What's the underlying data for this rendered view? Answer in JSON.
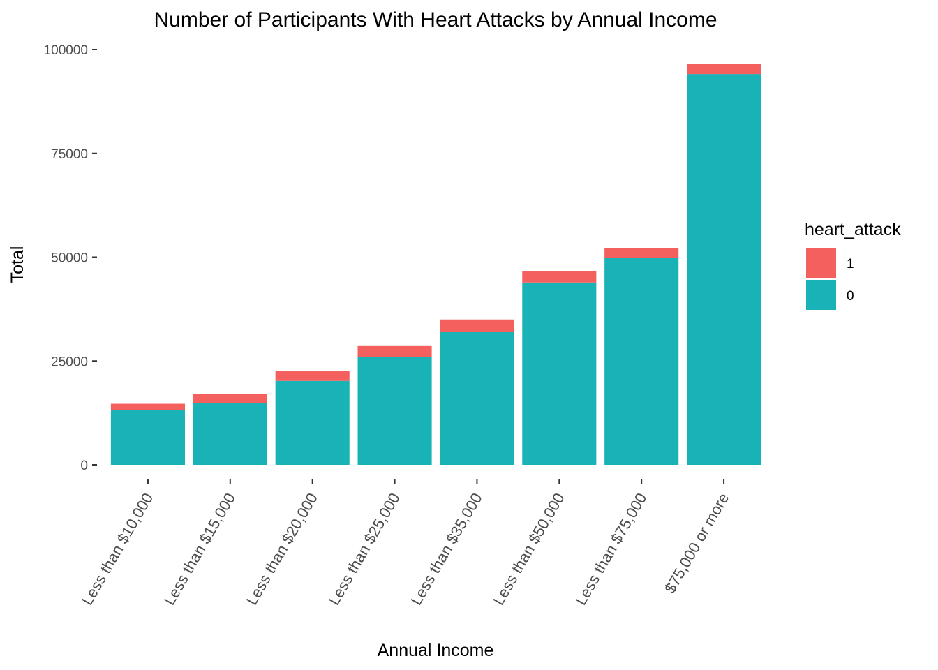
{
  "chart_data": {
    "type": "bar",
    "stacked": true,
    "title": "Number of Participants With Heart Attacks by Annual Income",
    "xlabel": "Annual Income",
    "ylabel": "Total",
    "ylim": [
      0,
      100000
    ],
    "yticks": [
      "0",
      "25000",
      "50000",
      "75000",
      "100000"
    ],
    "categories": [
      "Less than $10,000",
      "Less than $15,000",
      "Less than $20,000",
      "Less than $25,000",
      "Less than $35,000",
      "Less than $50,000",
      "Less than $75,000",
      "$75,000 or more"
    ],
    "legend_title": "heart_attack",
    "legend_position": "right",
    "grid": false,
    "series": [
      {
        "name": "0",
        "color": "#19B3B7",
        "values": [
          13200,
          14900,
          20200,
          25900,
          32100,
          43900,
          49800,
          94100
        ]
      },
      {
        "name": "1",
        "color": "#F3605D",
        "values": [
          1500,
          2100,
          2400,
          2700,
          2900,
          2800,
          2400,
          2400
        ]
      }
    ]
  }
}
